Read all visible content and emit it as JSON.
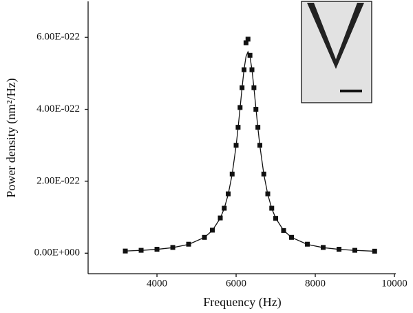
{
  "chart_data": {
    "type": "scatter",
    "xlabel": "Frequency (Hz)",
    "ylabel": "Power density (nm²/Hz)",
    "x": [
      3200,
      3600,
      4000,
      4400,
      4800,
      5200,
      5400,
      5600,
      5700,
      5800,
      5900,
      6000,
      6050,
      6100,
      6150,
      6200,
      6250,
      6300,
      6350,
      6400,
      6450,
      6500,
      6550,
      6600,
      6700,
      6800,
      6900,
      7000,
      7200,
      7400,
      7800,
      8200,
      8600,
      9000,
      9500
    ],
    "series": [
      {
        "style": "markers",
        "color": "#111111",
        "values": [
          6e-24,
          8e-24,
          1.1e-23,
          1.6e-23,
          2.5e-23,
          4.4e-23,
          6.4e-23,
          9.8e-23,
          1.25e-22,
          1.65e-22,
          2.2e-22,
          3e-22,
          3.5e-22,
          4.05e-22,
          4.6e-22,
          5.1e-22,
          5.85e-22,
          5.95e-22,
          5.5e-22,
          5.1e-22,
          4.6e-22,
          4e-22,
          3.5e-22,
          3e-22,
          2.2e-22,
          1.65e-22,
          1.25e-22,
          9.7e-23,
          6.3e-23,
          4.4e-23,
          2.5e-23,
          1.6e-23,
          1.1e-23,
          8e-24,
          5.6e-24
        ]
      },
      {
        "style": "line",
        "color": "#111111",
        "values": [
          5.94e-24,
          7.8e-24,
          1.07e-23,
          1.55e-23,
          2.45e-23,
          4.39e-23,
          6.32e-23,
          9.73e-23,
          1.246e-22,
          1.634e-22,
          2.193e-22,
          2.989e-22,
          3.485e-22,
          4.034e-22,
          4.596e-22,
          5.104e-22,
          5.467e-22,
          5.6e-22,
          5.467e-22,
          5.104e-22,
          4.596e-22,
          4.034e-22,
          3.485e-22,
          2.989e-22,
          2.193e-22,
          1.634e-22,
          1.246e-22,
          9.73e-23,
          6.32e-23,
          4.39e-23,
          2.45e-23,
          1.55e-23,
          1.07e-23,
          7.8e-24,
          5.58e-24
        ]
      }
    ],
    "xlim": [
      2260,
      10000
    ],
    "xticks": [
      4000,
      6000,
      8000,
      10000
    ],
    "ylim": [
      -5.7e-23,
      7e-22
    ],
    "yticks": [
      {
        "value": 0,
        "label": "0.00E+000"
      },
      {
        "value": 2e-22,
        "label": "2.00E-022"
      },
      {
        "value": 4e-22,
        "label": "4.00E-022"
      },
      {
        "value": 6e-22,
        "label": "6.00E-022"
      }
    ],
    "grid": false
  }
}
